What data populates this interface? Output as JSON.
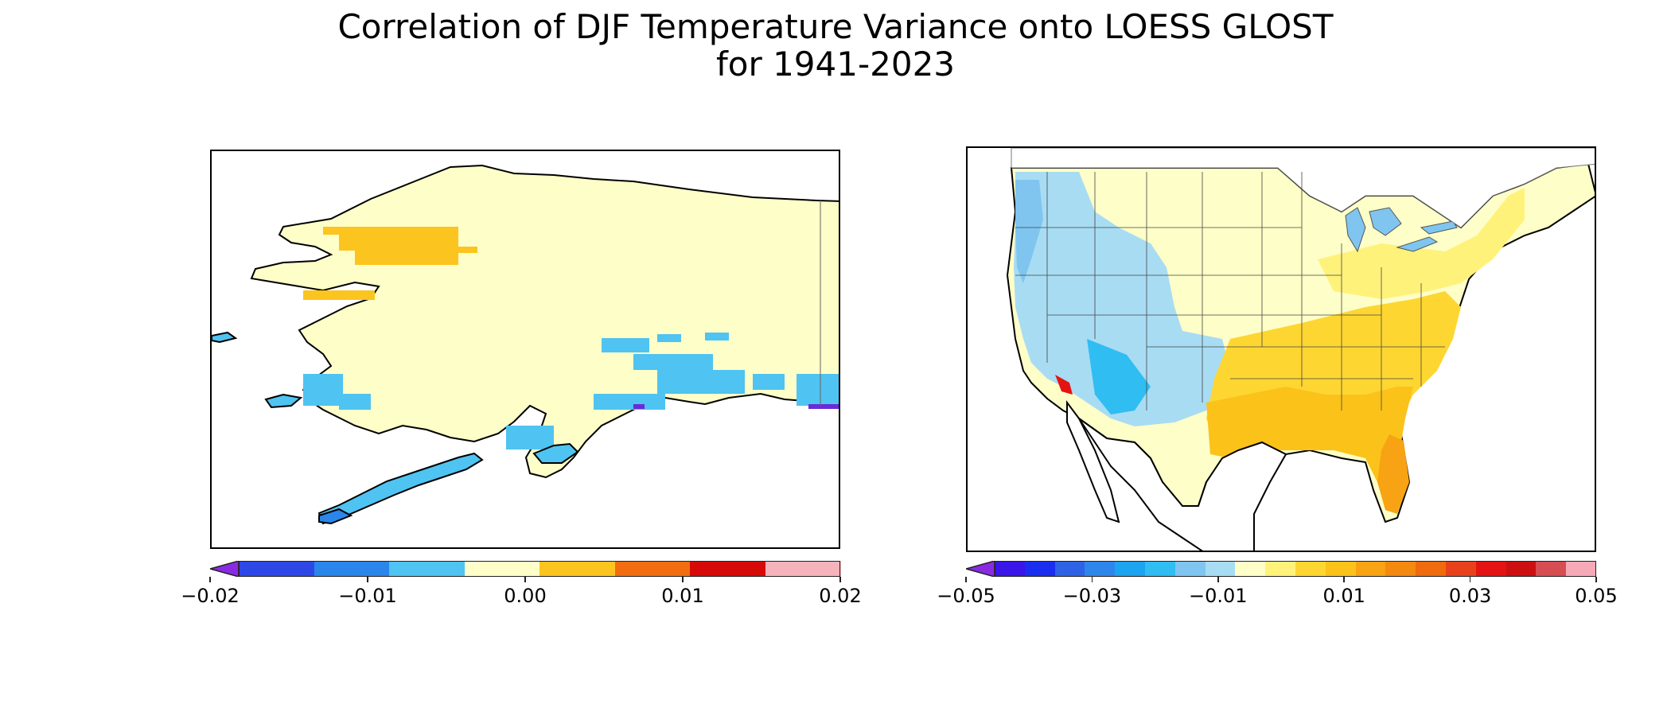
{
  "title": {
    "line1": "Correlation of DJF Temperature Variance onto LOESS GLOST",
    "line2": "for 1941-2023"
  },
  "colors": {
    "land_fill": "#fefec8",
    "coast": "#000000"
  },
  "maps": [
    {
      "name": "alaska",
      "colorbar": {
        "min": -0.02,
        "max": 0.02,
        "extend": "min",
        "extend_color": "#8a2be2",
        "bins": [
          "#2e48e8",
          "#2a86ea",
          "#4fc3f1",
          "#fefec8",
          "#fcc41f",
          "#f26d0f",
          "#d70a0a",
          "#f7b3bb"
        ],
        "tick_values": [
          -0.02,
          -0.01,
          0.0,
          0.01,
          0.02
        ],
        "tick_labels": [
          "−0.02",
          "−0.01",
          "0.00",
          "0.01",
          "0.02"
        ]
      }
    },
    {
      "name": "conus",
      "colorbar": {
        "min": -0.05,
        "max": 0.05,
        "extend": "min",
        "extend_color": "#8a2be2",
        "bins": [
          "#3a16e8",
          "#1a2ef0",
          "#2f63e6",
          "#2f86ea",
          "#1ca4f0",
          "#2fbdf2",
          "#7fc5ef",
          "#a8dcf3",
          "#fefec8",
          "#fff27a",
          "#fed631",
          "#fbc21a",
          "#f7a313",
          "#f3890f",
          "#f06a0e",
          "#e8421c",
          "#e41414",
          "#cc1012",
          "#d64d52",
          "#f6aab7"
        ],
        "tick_values": [
          -0.05,
          -0.03,
          -0.01,
          0.01,
          0.03,
          0.05
        ],
        "tick_labels": [
          "−0.05",
          "−0.03",
          "−0.01",
          "0.01",
          "0.03",
          "0.05"
        ]
      }
    }
  ]
}
